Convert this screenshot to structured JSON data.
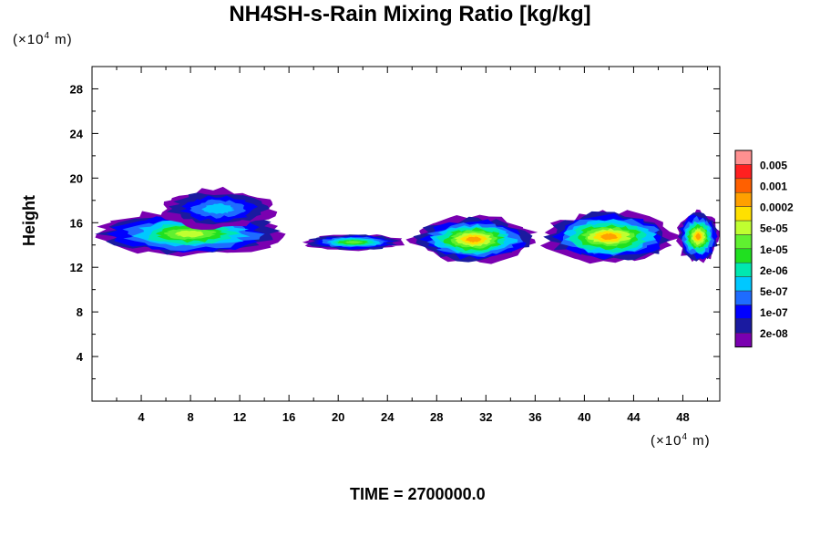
{
  "chart_data": {
    "type": "heatmap",
    "title": "NH4SH-s-Rain Mixing Ratio [kg/kg]",
    "xunit": [
      "(×10",
      "4",
      " m)"
    ],
    "yunit": [
      "(×10",
      "4",
      " m)"
    ],
    "ylabel": "Height",
    "footer": "TIME = 2700000.0",
    "xlim": [
      0,
      51
    ],
    "ylim": [
      0,
      30
    ],
    "xticks": [
      4,
      8,
      12,
      16,
      20,
      24,
      28,
      32,
      36,
      40,
      44,
      48
    ],
    "yticks": [
      4,
      8,
      12,
      16,
      20,
      24,
      28
    ],
    "legend_labels": [
      "2e-08",
      "1e-07",
      "5e-07",
      "2e-06",
      "1e-05",
      "5e-05",
      "0.0002",
      "0.001",
      "0.005"
    ],
    "legend_colors": [
      "#7a00b0",
      "#1a1aa0",
      "#0000ff",
      "#1e6cff",
      "#00c8ff",
      "#00e8b0",
      "#20e020",
      "#60f030",
      "#c0ff30",
      "#ffe000",
      "#ffa000",
      "#ff6000",
      "#ff2020",
      "#ff9090"
    ],
    "cloud_segments": [
      {
        "x0": 0.0,
        "x1": 16.0,
        "ylow": 13.0,
        "yhigh": 17.0,
        "max_level": 8
      },
      {
        "x0": 5.5,
        "x1": 15.0,
        "ylow": 15.5,
        "yhigh": 19.0,
        "max_level": 4
      },
      {
        "x0": 17.0,
        "x1": 25.5,
        "ylow": 13.5,
        "yhigh": 15.0,
        "max_level": 7
      },
      {
        "x0": 26.0,
        "x1": 36.0,
        "ylow": 12.5,
        "yhigh": 16.5,
        "max_level": 10
      },
      {
        "x0": 36.5,
        "x1": 47.5,
        "ylow": 12.5,
        "yhigh": 17.0,
        "max_level": 10
      },
      {
        "x0": 47.5,
        "x1": 51.0,
        "ylow": 12.5,
        "yhigh": 17.0,
        "max_level": 10
      }
    ]
  }
}
